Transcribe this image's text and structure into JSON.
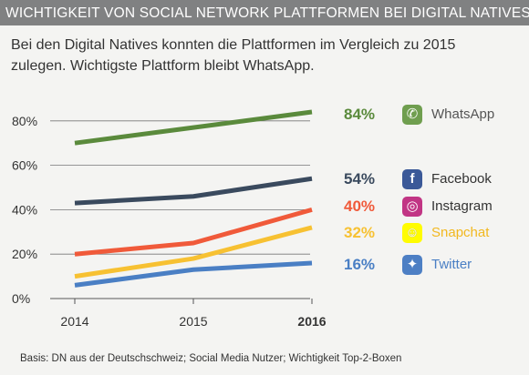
{
  "header": {
    "title": "WICHTIGKEIT VON SOCIAL NETWORK PLATTFORMEN BEI DIGITAL NATIVES"
  },
  "subtitle": "Bei den Digital Natives konnten die Plattformen im Vergleich zu 2015 zulegen. Wichtigste Plattform bleibt WhatsApp.",
  "source": "Basis: DN aus der Deutschschweiz; Social Media Nutzer; Wichtigkeit Top-2-Boxen",
  "chart_data": {
    "type": "line",
    "title": "WICHTIGKEIT VON SOCIAL NETWORK PLATTFORMEN BEI DIGITAL NATIVES",
    "x": [
      "2014",
      "2015",
      "2016"
    ],
    "y_ticks": [
      "0%",
      "20%",
      "40%",
      "60%",
      "80%"
    ],
    "ylim": [
      0,
      90
    ],
    "grid": true,
    "series": [
      {
        "name": "WhatsApp",
        "values": [
          70,
          77,
          84
        ],
        "color": "#5a8a3c",
        "label": "84%",
        "icon": "whatsapp-icon",
        "icon_color": "#6f9e4f",
        "name_color": "#555555"
      },
      {
        "name": "Facebook",
        "values": [
          43,
          46,
          54
        ],
        "color": "#3a4a5e",
        "label": "54%",
        "icon": "facebook-icon",
        "icon_color": "#3b5998",
        "name_color": "#333333"
      },
      {
        "name": "Instagram",
        "values": [
          20,
          25,
          40
        ],
        "color": "#f05a3a",
        "label": "40%",
        "icon": "instagram-icon",
        "icon_color": "#c13584",
        "name_color": "#333333"
      },
      {
        "name": "Snapchat",
        "values": [
          10,
          18,
          32
        ],
        "color": "#f7c132",
        "label": "32%",
        "icon": "snapchat-icon",
        "icon_color": "#fffc00",
        "name_color": "#f2b81f"
      },
      {
        "name": "Twitter",
        "values": [
          6,
          13,
          16
        ],
        "color": "#4a7fc4",
        "label": "16%",
        "icon": "twitter-icon",
        "icon_color": "#4d7fc4",
        "name_color": "#4a7fc4"
      }
    ]
  }
}
